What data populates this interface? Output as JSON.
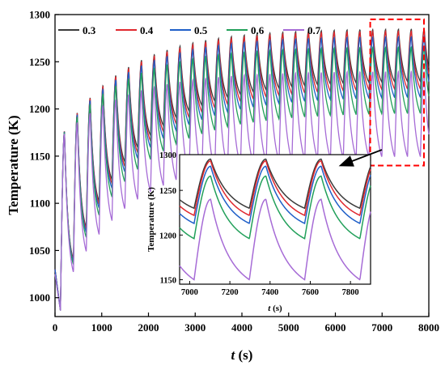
{
  "chart_data": {
    "type": "line",
    "xlabel_var": "t",
    "xlabel_unit": " (s)",
    "ylabel": "Temperature (K)",
    "xlim": [
      0,
      8000
    ],
    "ylim": [
      980,
      1300
    ],
    "x_ticks": [
      0,
      1000,
      2000,
      3000,
      4000,
      5000,
      6000,
      7000,
      8000
    ],
    "y_ticks": [
      1000,
      1050,
      1100,
      1150,
      1200,
      1250,
      1300
    ],
    "legend_location": "top",
    "series": [
      {
        "name": "0.3",
        "color": "#3a3a3a",
        "cycle_peak": 1285,
        "cycle_trough": 1230
      },
      {
        "name": "0.4",
        "color": "#e0282e",
        "cycle_peak": 1283,
        "cycle_trough": 1222
      },
      {
        "name": "0.5",
        "color": "#1f5fc8",
        "cycle_peak": 1277,
        "cycle_trough": 1213
      },
      {
        "name": "0.6",
        "color": "#22a05a",
        "cycle_peak": 1266,
        "cycle_trough": 1196
      },
      {
        "name": "0.7",
        "color": "#a66bd6",
        "cycle_peak": 1240,
        "cycle_trough": 1150
      }
    ],
    "cycle_period_s": 275,
    "inset": {
      "xlabel_var": "t",
      "xlabel_unit": " (s)",
      "ylabel": "Temperature (K)",
      "xlim": [
        6950,
        7900
      ],
      "ylim": [
        1145,
        1290
      ],
      "x_ticks": [
        7000,
        7200,
        7400,
        7600,
        7800
      ],
      "y_ticks": [
        1150,
        1200,
        1250,
        1300
      ]
    },
    "highlight_box_x": [
      6850,
      8000
    ],
    "highlight_box_y": [
      1140,
      1295
    ]
  }
}
